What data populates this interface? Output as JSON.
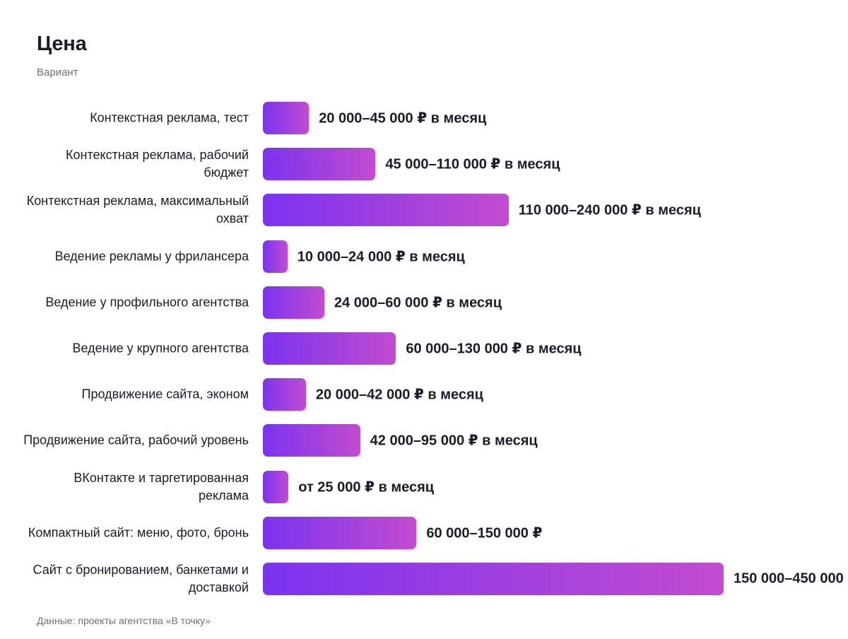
{
  "title": "Цена",
  "subtitle": "Вариант",
  "source": "Данные: проекты агентства «В точку»",
  "colors": {
    "bar_gradient_start": "#7b33f0",
    "bar_gradient_end": "#c24ccf",
    "text": "#1c1b2e",
    "muted": "#6e6e80"
  },
  "chart_data": {
    "type": "bar",
    "orientation": "horizontal",
    "title": "Цена",
    "subtitle": "Вариант",
    "xlim": [
      0,
      450000
    ],
    "grid": false,
    "categories": [
      "Контекстная реклама, тест",
      "Контекстная реклама, рабочий бюджет",
      "Контекстная реклама, максимальный охват",
      "Ведение рекламы у фрилансера",
      "Ведение у профильного агентства",
      "Ведение у крупного агентства",
      "Продвижение сайта, эконом",
      "Продвижение сайта, рабочий уровень",
      "ВКонтакте и таргетированная реклама",
      "Компактный сайт: меню, фото, бронь",
      "Сайт с бронированием, банкетами и доставкой"
    ],
    "values": [
      45000,
      110000,
      240000,
      24000,
      60000,
      130000,
      42000,
      95000,
      25000,
      150000,
      450000
    ],
    "data_labels": [
      "20 000–45 000 ₽ в месяц",
      "45 000–110 000 ₽ в месяц",
      "110 000–240 000 ₽ в месяц",
      "10 000–24 000 ₽ в месяц",
      "24 000–60 000 ₽ в месяц",
      "60 000–130 000 ₽ в месяц",
      "20 000–42 000 ₽ в месяц",
      "42 000–95 000 ₽ в месяц",
      "от 25 000 ₽ в месяц",
      "60 000–150 000 ₽",
      "150 000–450 000"
    ]
  }
}
